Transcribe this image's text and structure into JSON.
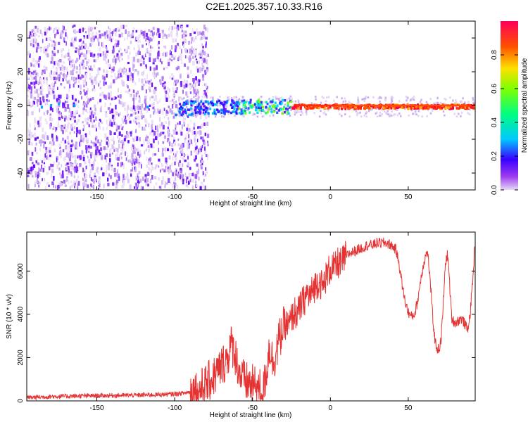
{
  "chart_data": [
    {
      "type": "heatmap",
      "title": "C2E1.2025.357.10.33.R16",
      "xlabel": "Height of straight line (km)",
      "ylabel": "Frequency (Hz)",
      "xlim": [
        -195,
        93
      ],
      "ylim": [
        -50,
        50
      ],
      "xticks": [
        -150,
        -100,
        -50,
        0,
        50
      ],
      "xtick_labels": [
        "-150",
        "-100",
        "-50",
        "0",
        "50"
      ],
      "yticks": [
        -40,
        -20,
        0,
        20,
        40
      ],
      "ytick_labels": [
        "-40",
        "-20",
        "0",
        "20",
        "40"
      ],
      "colorbar": {
        "label": "Normalized spectral amplitude",
        "range": [
          0,
          1
        ],
        "ticks": [
          0.0,
          0.2,
          0.4,
          0.6,
          0.8
        ],
        "tick_labels": [
          "0.0",
          "0.2",
          "0.4",
          "0.6",
          "0.8"
        ],
        "colors": [
          "#e6d8f5",
          "#7f00ff",
          "#0000ff",
          "#00ffff",
          "#00ff00",
          "#ffff00",
          "#ff8000",
          "#ff0000",
          "#ff0066"
        ]
      },
      "features": {
        "noise_region_x": [
          -195,
          -85
        ],
        "carrier_frequency_hz": 0,
        "carrier_start_x": -100,
        "carrier_strong_from_x": -25,
        "noise_spread_hz": 48,
        "carrier_spread_hz": 4
      }
    },
    {
      "type": "line",
      "xlabel": "Height of straight line (km)",
      "ylabel": "SNR (10 * v/v)",
      "xlim": [
        -195,
        93
      ],
      "ylim": [
        0,
        7800
      ],
      "xticks": [
        -150,
        -100,
        -50,
        0,
        50
      ],
      "xtick_labels": [
        "-150",
        "-100",
        "-50",
        "0",
        "50"
      ],
      "yticks": [
        0,
        2000,
        4000,
        6000
      ],
      "ytick_labels": [
        "0",
        "2000",
        "4000",
        "6000"
      ],
      "color": "#e53333",
      "series": [
        {
          "name": "SNR",
          "x": [
            -195,
            -180,
            -160,
            -140,
            -120,
            -105,
            -95,
            -88,
            -82,
            -78,
            -74,
            -70,
            -66,
            -64,
            -62,
            -60,
            -58,
            -55,
            -52,
            -49,
            -46,
            -43,
            -41,
            -39,
            -37,
            -35,
            -33,
            -31,
            -29,
            -27,
            -25,
            -23,
            -21,
            -19,
            -17,
            -15,
            -13,
            -11,
            -9,
            -7,
            -5,
            -3,
            -1,
            1,
            3,
            5,
            7,
            9,
            12,
            15,
            18,
            21,
            24,
            27,
            30,
            33,
            36,
            39,
            42,
            44,
            46,
            48,
            50,
            52,
            54,
            56,
            58,
            60,
            62,
            63,
            64,
            65,
            66,
            67,
            68,
            69,
            70,
            71,
            72,
            73,
            74,
            75,
            76,
            77,
            78,
            80,
            82,
            84,
            86,
            88,
            89,
            90,
            91,
            92,
            93
          ],
          "y": [
            150,
            200,
            230,
            250,
            270,
            300,
            350,
            450,
            600,
            900,
            1200,
            1600,
            2000,
            2600,
            2400,
            1800,
            1200,
            900,
            800,
            700,
            600,
            500,
            1400,
            2600,
            1800,
            2200,
            2800,
            3200,
            3600,
            3400,
            3800,
            4100,
            4000,
            4400,
            4600,
            5000,
            4800,
            5200,
            5400,
            5600,
            5200,
            5700,
            6000,
            6200,
            6100,
            6400,
            6300,
            6600,
            6800,
            6900,
            7000,
            7100,
            7200,
            7200,
            7300,
            7300,
            7300,
            7200,
            7000,
            6400,
            5400,
            4600,
            4100,
            3900,
            4000,
            4600,
            5600,
            6400,
            6900,
            6500,
            5600,
            4600,
            3600,
            2900,
            2500,
            2400,
            2400,
            2800,
            3800,
            5200,
            6400,
            6800,
            6200,
            4800,
            3800,
            3600,
            3700,
            3800,
            3600,
            3300,
            3600,
            4200,
            5200,
            6200,
            7400
          ]
        }
      ]
    }
  ]
}
